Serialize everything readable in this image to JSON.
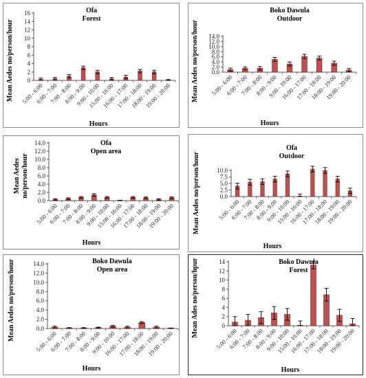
{
  "bar_color": "#c0504d",
  "bar_edge": "#8b1d1a",
  "error_color": "#000000",
  "chart_data": [
    {
      "id": "p1",
      "type": "bar",
      "title": "Ofa",
      "subtitle": "Forest",
      "ylabel": "Mean Aedes no/person/hour",
      "ylabel_lines": [
        "Mean Aedes no/person/hour"
      ],
      "xlabel": "Hours",
      "ylim": [
        0,
        16
      ],
      "yticks": [
        0,
        2,
        4,
        6,
        8,
        10,
        12,
        14,
        16
      ],
      "ytick_labels": [
        "0",
        "2",
        "4",
        "6",
        "8",
        "10",
        "12",
        "14",
        "16"
      ],
      "categories": [
        "5:00 - 6:00",
        "6:00 - 7:00",
        "7:00 - 8:00",
        "8:00 - 9:00",
        "9:00 - 10:00",
        "15:00 - 16:00",
        "16:00 - 17:00",
        "17:00 - 18:00",
        "18:00 - 19:00",
        "19:00 - 20:00"
      ],
      "values": [
        0.3,
        0.4,
        1.0,
        3.0,
        2.0,
        0.4,
        0.8,
        2.2,
        2.0,
        0.1
      ],
      "errors": [
        0.3,
        0.3,
        0.4,
        0.4,
        0.4,
        0.3,
        0.4,
        0.4,
        0.4,
        0.1
      ]
    },
    {
      "id": "p2",
      "type": "bar",
      "title": "Boko Dawula",
      "subtitle": "Outdoor",
      "ylabel": "Mean Aedes no/person/hour",
      "ylabel_lines": [
        "Mean Aedes no/person/hour"
      ],
      "xlabel": "Hours",
      "ylim": [
        0,
        14
      ],
      "yticks": [
        0,
        2,
        4,
        6,
        8,
        10,
        12,
        14
      ],
      "ytick_labels": [
        "0.0",
        "2.0",
        "4.0",
        "6.0",
        "8.0",
        "10.0",
        "12.0",
        "14.0"
      ],
      "categories": [
        "5:00 - 6:00",
        "6:00 - 7:00",
        "7:00 - 8:00",
        "8:00 - 9:00",
        "9:00 - 10:00",
        "16:00 - 17:00",
        "17:00 - 18:00",
        "18:00 - 19:00",
        "19:00 - 20:00"
      ],
      "values": [
        1.0,
        1.5,
        1.5,
        5.0,
        3.2,
        6.2,
        5.5,
        3.5,
        0.8
      ],
      "errors": [
        0.6,
        0.6,
        0.7,
        0.8,
        0.8,
        0.8,
        0.8,
        0.8,
        0.6
      ]
    },
    {
      "id": "p3",
      "type": "bar",
      "title": "Ofa",
      "subtitle": "Open area",
      "ylabel": "Mean Aedes no/person/hour",
      "ylabel_lines": [
        "Mean Aedes",
        "no/person/hour"
      ],
      "xlabel": "Hours",
      "ylim": [
        0,
        14
      ],
      "yticks": [
        0,
        2,
        4,
        6,
        8,
        10,
        12,
        14
      ],
      "ytick_labels": [
        "0.0",
        "2.0",
        "4.0",
        "6.0",
        "8.0",
        "10.0",
        "12.0",
        "14.0"
      ],
      "categories": [
        "5:00 - 6:00",
        "6:00 - 7:00",
        "7:00 - 8:00",
        "8:00 - 9:00",
        "9:00 - 10:00",
        "15:00 - 16:00",
        "16:00 - 17:00",
        "17:00 - 18:00",
        "18:00 - 19:00",
        "19:00 - 20:00"
      ],
      "values": [
        0.3,
        0.5,
        0.8,
        1.4,
        0.8,
        0.05,
        0.8,
        0.7,
        0.3,
        0.7
      ],
      "errors": [
        0.2,
        0.2,
        0.2,
        0.3,
        0.2,
        0.05,
        0.2,
        0.2,
        0.2,
        0.2
      ]
    },
    {
      "id": "p4",
      "type": "bar",
      "title": "Ofa",
      "subtitle": "Outdoor",
      "ylabel": "Mean Aedes no/person/hour",
      "ylabel_lines": [
        "Mean Aedes no/person/hour"
      ],
      "xlabel": "Hours",
      "ylim": [
        0,
        10
      ],
      "yticks": [
        0,
        2.5,
        5,
        7.5,
        10
      ],
      "ytick_labels": [
        "0.0",
        "2.5",
        "5.0",
        "7.5",
        "10.0"
      ],
      "categories": [
        "5:00 - 6:00",
        "6:00 - 7:00",
        "7:00 - 8:00",
        "8:00 - 9:00",
        "9:00 - 10:00",
        "15:00 - 16:00",
        "16:00 - 17:00",
        "17:00 - 18:00",
        "18:00 - 19:00",
        "19:00 - 20:00"
      ],
      "values": [
        4.0,
        5.5,
        5.7,
        6.7,
        8.7,
        0.0,
        10.5,
        10.0,
        6.7,
        2.2
      ],
      "errors": [
        1.1,
        1.1,
        1.1,
        1.1,
        1.1,
        1.0,
        1.1,
        1.1,
        1.1,
        1.0
      ]
    },
    {
      "id": "p5",
      "type": "bar",
      "title": "Boko Dawula",
      "subtitle": "Open area",
      "ylabel": "Mean Aedes no/person/hour",
      "ylabel_lines": [
        "Mean Aedes no/person/hour"
      ],
      "xlabel": "Hours",
      "ylim": [
        0,
        14
      ],
      "yticks": [
        0,
        2,
        4,
        6,
        8,
        10,
        12,
        14
      ],
      "ytick_labels": [
        "0.0",
        "2.0",
        "4.0",
        "6.0",
        "8.0",
        "10.0",
        "12.0",
        "14.0"
      ],
      "categories": [
        "5:00 - 6:00",
        "6:00 - 7:00",
        "7:00 - 8:00",
        "8:00 - 9:00",
        "9:00 - 10:00",
        "16:00 - 17:00",
        "17:00 - 18:00",
        "18:00 - 19:00",
        "19:00 - 20:00"
      ],
      "values": [
        0.3,
        0.1,
        0.1,
        0.2,
        0.5,
        0.3,
        1.3,
        0.3,
        0.05
      ],
      "errors": [
        0.2,
        0.1,
        0.1,
        0.1,
        0.2,
        0.2,
        0.2,
        0.2,
        0.05
      ]
    },
    {
      "id": "p6",
      "type": "bar",
      "title": "Boko Dawula",
      "subtitle": "Forest",
      "ylabel": "Mean Ades no/person/hpur",
      "ylabel_lines": [
        "Mean Ades no/person/hpur"
      ],
      "xlabel": "Hours",
      "ylim": [
        0,
        14
      ],
      "yticks": [
        0,
        2,
        4,
        6,
        8,
        10,
        12,
        14
      ],
      "ytick_labels": [
        "0",
        "2",
        "4",
        "6",
        "8",
        "10",
        "12",
        "14"
      ],
      "categories": [
        "5:00 - 6:00",
        "6:00 - 7:00",
        "7:00 - 8:00",
        "8:00 - 9:00",
        "9:00 - 10:00",
        "15:00 - 16:00",
        "16:00 - 17:00",
        "17:00 - 18:00",
        "18:00 - 19:00",
        "19:00 - 20:00"
      ],
      "values": [
        0.8,
        1.2,
        1.8,
        2.8,
        2.5,
        0.05,
        13.3,
        6.8,
        2.3,
        0.4
      ],
      "errors": [
        1.2,
        1.3,
        1.3,
        1.4,
        1.3,
        1.0,
        0.8,
        1.4,
        1.3,
        1.2
      ]
    }
  ]
}
